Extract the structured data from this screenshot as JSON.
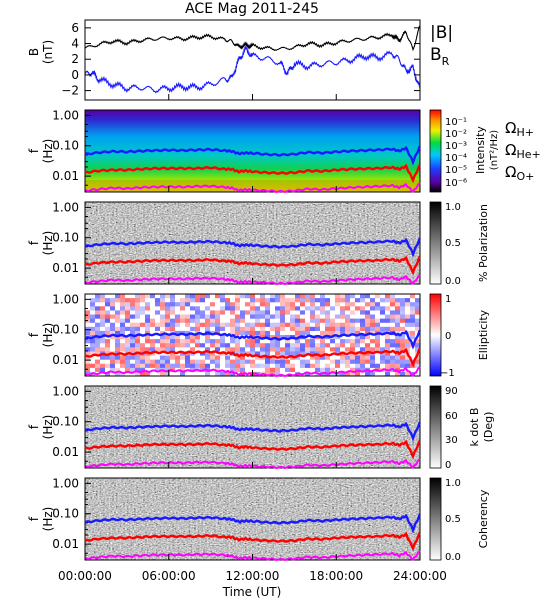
{
  "title": "ACE Mag 2011-245",
  "x_axis": {
    "label": "Time (UT)",
    "ticks": [
      "00:00:00",
      "06:00:00",
      "12:00:00",
      "18:00:00",
      "24:00:00"
    ],
    "tick_hours": [
      0,
      6,
      12,
      18,
      24
    ]
  },
  "colors": {
    "B": "#000000",
    "BR": "#1a1aff",
    "H": "#1a1aff",
    "He": "#ff0000",
    "O": "#ff00ff"
  },
  "chart_data": [
    {
      "type": "line",
      "panel": "field",
      "ylabel": [
        "B",
        "(nT)"
      ],
      "ylim": [
        -3.2,
        7
      ],
      "yticks": [
        -2,
        0,
        2,
        4,
        6
      ],
      "ytick_labels": [
        "−2",
        "0",
        "2",
        "4",
        "6"
      ],
      "legend": [
        "|B|",
        "B"
      ],
      "legend_sub": "R",
      "series": [
        {
          "name": "|B|",
          "x": [
            0,
            1,
            2,
            3,
            4,
            5,
            6,
            7,
            8,
            9,
            10,
            10.5,
            11,
            11.5,
            12,
            13,
            14,
            15,
            16,
            17,
            18,
            19,
            20,
            21,
            22,
            22.5,
            23,
            23.5,
            24
          ],
          "y": [
            3.4,
            3.9,
            4.3,
            4.1,
            4.4,
            4.6,
            4.7,
            4.6,
            4.8,
            4.9,
            4.5,
            4.3,
            3.6,
            3.8,
            3.7,
            3.4,
            3.3,
            3.5,
            4.0,
            3.8,
            4.1,
            4.4,
            4.6,
            4.8,
            5.1,
            4.4,
            5.5,
            3.2,
            6.3
          ]
        },
        {
          "name": "B_R",
          "x": [
            0,
            0.5,
            1,
            2,
            3,
            4,
            5,
            6,
            7,
            8,
            9,
            10,
            10.5,
            11,
            11.5,
            12,
            13,
            14,
            14.5,
            15,
            16,
            17,
            18,
            19,
            20,
            21,
            22,
            22.5,
            23,
            23.5,
            24
          ],
          "y": [
            0.1,
            0.3,
            -0.6,
            -1.2,
            -1.7,
            -1.6,
            -1.9,
            -1.7,
            -1.5,
            -1.6,
            -1.2,
            -0.6,
            -0.4,
            1.8,
            3.3,
            2.4,
            2.1,
            1.5,
            0.2,
            1.4,
            1.1,
            1.4,
            1.6,
            1.9,
            2.4,
            2.2,
            2.7,
            2.0,
            0.5,
            0.9,
            -1.8
          ]
        }
      ]
    },
    {
      "type": "heatmap",
      "panel": "intensity",
      "ylabel": [
        "f",
        "(Hz)"
      ],
      "yscale": "log",
      "yticks": [
        1,
        0.1,
        0.01
      ],
      "ytick_labels": [
        "1.00",
        "0.10",
        "0.01"
      ],
      "colorbar": {
        "title": "Intensity",
        "subtitle": "(nT²/Hz)",
        "scale": "rainbow",
        "tick_labels": [
          "10⁻¹",
          "10⁻²",
          "10⁻³",
          "10⁻⁴",
          "10⁻⁵",
          "10⁻⁶"
        ]
      },
      "legend": [
        "Ω",
        "Ω",
        "Ω"
      ],
      "legend_subs": [
        "H+",
        "He+",
        "O+"
      ]
    },
    {
      "type": "heatmap",
      "panel": "polarization",
      "ylabel": [
        "f",
        "(Hz)"
      ],
      "yscale": "log",
      "ytick_labels": [
        "1.00",
        "0.10",
        "0.01"
      ],
      "colorbar": {
        "title": "% Polarization",
        "scale": "gray",
        "tick_labels": [
          "1.0",
          "0.5",
          "0.0"
        ]
      }
    },
    {
      "type": "heatmap",
      "panel": "ellipticity",
      "ylabel": [
        "f",
        "(Hz)"
      ],
      "yscale": "log",
      "ytick_labels": [
        "1.00",
        "0.10",
        "0.01"
      ],
      "colorbar": {
        "title": "Ellipticity",
        "scale": "bluewhitered",
        "tick_labels": [
          "1",
          "0",
          "−1"
        ]
      }
    },
    {
      "type": "heatmap",
      "panel": "kdotb",
      "ylabel": [
        "f",
        "(Hz)"
      ],
      "yscale": "log",
      "ytick_labels": [
        "1.00",
        "0.10",
        "0.01"
      ],
      "colorbar": {
        "title": "k dot B",
        "subtitle": "(Deg)",
        "scale": "gray",
        "tick_labels": [
          "90",
          "60",
          "30",
          "0"
        ]
      }
    },
    {
      "type": "heatmap",
      "panel": "coherency",
      "ylabel": [
        "f",
        "(Hz)"
      ],
      "yscale": "log",
      "ytick_labels": [
        "1.00",
        "0.10",
        "0.01"
      ],
      "colorbar": {
        "title": "Coherency",
        "scale": "gray",
        "tick_labels": [
          "1.0",
          "0.5",
          "0.0"
        ]
      }
    }
  ],
  "gyrofrequency_lines": {
    "x": [
      0,
      1,
      2,
      3,
      4,
      5,
      6,
      7,
      8,
      9,
      10,
      10.5,
      11,
      11.5,
      12,
      13,
      14,
      15,
      16,
      17,
      18,
      19,
      20,
      21,
      22,
      22.5,
      23,
      23.5,
      24
    ],
    "H+": [
      0.052,
      0.06,
      0.065,
      0.063,
      0.067,
      0.07,
      0.072,
      0.07,
      0.073,
      0.075,
      0.069,
      0.066,
      0.055,
      0.058,
      0.057,
      0.052,
      0.05,
      0.053,
      0.061,
      0.058,
      0.063,
      0.067,
      0.07,
      0.073,
      0.078,
      0.067,
      0.084,
      0.03,
      0.096
    ],
    "He+": [
      0.013,
      0.015,
      0.016,
      0.016,
      0.017,
      0.018,
      0.018,
      0.018,
      0.018,
      0.019,
      0.017,
      0.017,
      0.014,
      0.015,
      0.014,
      0.013,
      0.0125,
      0.013,
      0.015,
      0.0145,
      0.016,
      0.017,
      0.0175,
      0.018,
      0.0195,
      0.017,
      0.021,
      0.0075,
      0.024
    ],
    "O+": [
      0.0033,
      0.0037,
      0.0041,
      0.0039,
      0.0042,
      0.0044,
      0.0045,
      0.0044,
      0.0046,
      0.0047,
      0.0043,
      0.0041,
      0.0034,
      0.0036,
      0.0035,
      0.0033,
      0.0031,
      0.0033,
      0.0038,
      0.0036,
      0.0039,
      0.0042,
      0.0044,
      0.0046,
      0.0049,
      0.0042,
      0.0052,
      0.0031,
      0.006
    ]
  }
}
